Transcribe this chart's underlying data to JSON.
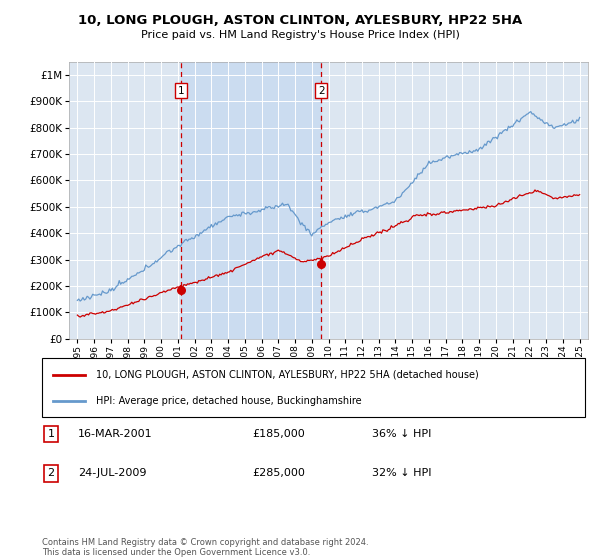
{
  "title": "10, LONG PLOUGH, ASTON CLINTON, AYLESBURY, HP22 5HA",
  "subtitle": "Price paid vs. HM Land Registry's House Price Index (HPI)",
  "legend_entry1": "10, LONG PLOUGH, ASTON CLINTON, AYLESBURY, HP22 5HA (detached house)",
  "legend_entry2": "HPI: Average price, detached house, Buckinghamshire",
  "annotation1_label": "1",
  "annotation1_date": "16-MAR-2001",
  "annotation1_price": "£185,000",
  "annotation1_hpi": "36% ↓ HPI",
  "annotation1_year": 2001.21,
  "annotation1_value": 185000,
  "annotation2_label": "2",
  "annotation2_date": "24-JUL-2009",
  "annotation2_price": "£285,000",
  "annotation2_hpi": "32% ↓ HPI",
  "annotation2_year": 2009.56,
  "annotation2_value": 285000,
  "footer": "Contains HM Land Registry data © Crown copyright and database right 2024.\nThis data is licensed under the Open Government Licence v3.0.",
  "xlim": [
    1994.5,
    2025.5
  ],
  "ylim": [
    0,
    1050000
  ],
  "plot_bg_color": "#dce6f1",
  "shade_color": "#c5d8f0",
  "red_line_color": "#cc0000",
  "blue_line_color": "#6699cc",
  "vline_color": "#cc0000",
  "grid_color": "#ffffff"
}
